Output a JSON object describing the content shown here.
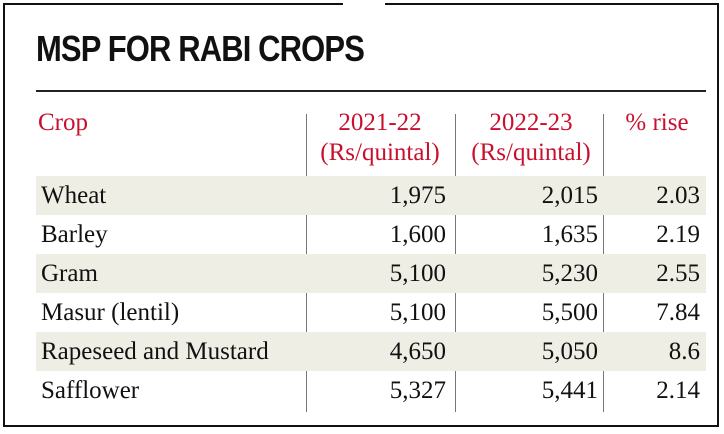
{
  "title": "MSP FOR RABI CROPS",
  "columns": {
    "crop": "Crop",
    "y1_year": "2021-22",
    "y1_unit": "(Rs/quintal)",
    "y2_year": "2022-23",
    "y2_unit": "(Rs/quintal)",
    "rise": "% rise"
  },
  "colors": {
    "header": "#c8102e",
    "shade": "#eeeee4"
  },
  "rows": [
    {
      "crop": "Wheat",
      "y1": "1,975",
      "y2": "2,015",
      "rise": "2.03"
    },
    {
      "crop": "Barley",
      "y1": "1,600",
      "y2": "1,635",
      "rise": "2.19"
    },
    {
      "crop": "Gram",
      "y1": "5,100",
      "y2": "5,230",
      "rise": "2.55"
    },
    {
      "crop": "Masur (lentil)",
      "y1": "5,100",
      "y2": "5,500",
      "rise": "7.84"
    },
    {
      "crop": "Rapeseed and Mustard",
      "y1": "4,650",
      "y2": "5,050",
      "rise": "8.6"
    },
    {
      "crop": "Safflower",
      "y1": "5,327",
      "y2": "5,441",
      "rise": "2.14"
    }
  ]
}
